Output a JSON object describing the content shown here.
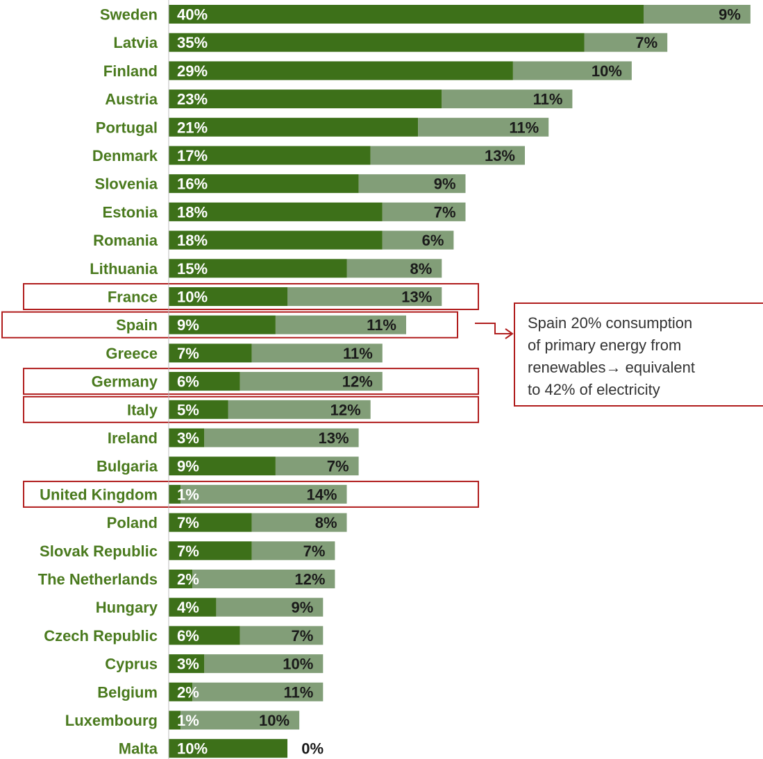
{
  "chart_data": {
    "type": "bar",
    "stacked": true,
    "orientation": "horizontal",
    "categories": [
      "Sweden",
      "Latvia",
      "Finland",
      "Austria",
      "Portugal",
      "Denmark",
      "Slovenia",
      "Estonia",
      "Romania",
      "Lithuania",
      "France",
      "Spain",
      "Greece",
      "Germany",
      "Italy",
      "Ireland",
      "Bulgaria",
      "United Kingdom",
      "Poland",
      "Slovak Republic",
      "The Netherlands",
      "Hungary",
      "Czech Republic",
      "Cyprus",
      "Belgium",
      "Luxembourg",
      "Malta"
    ],
    "series": [
      {
        "values": [
          40,
          35,
          29,
          23,
          21,
          17,
          16,
          18,
          18,
          15,
          10,
          9,
          7,
          6,
          5,
          3,
          9,
          1,
          7,
          7,
          2,
          4,
          6,
          3,
          2,
          1,
          10
        ]
      },
      {
        "values": [
          9,
          7,
          10,
          11,
          11,
          13,
          9,
          7,
          6,
          8,
          13,
          11,
          11,
          12,
          12,
          13,
          7,
          14,
          8,
          7,
          12,
          9,
          7,
          10,
          11,
          10,
          0
        ]
      }
    ],
    "value_labels": {
      "dark": [
        "40%",
        "35%",
        "29%",
        "23%",
        "21%",
        "17%",
        "16%",
        "18%",
        "18%",
        "15%",
        "10%",
        "9%",
        "7%",
        "6%",
        "5%",
        "3%",
        "9%",
        "1%",
        "7%",
        "7%",
        "2%",
        "4%",
        "6%",
        "3%",
        "2%",
        "1%",
        "10%"
      ],
      "light": [
        "9%",
        "7%",
        "10%",
        "11%",
        "11%",
        "13%",
        "9%",
        "7%",
        "6%",
        "8%",
        "13%",
        "11%",
        "11%",
        "12%",
        "12%",
        "13%",
        "7%",
        "14%",
        "8%",
        "7%",
        "12%",
        "9%",
        "7%",
        "10%",
        "11%",
        "10%",
        "0%"
      ]
    },
    "highlighted": [
      "France",
      "Spain",
      "Germany",
      "Italy",
      "United Kingdom"
    ],
    "grid": false,
    "colors": {
      "series1": "#3d7019",
      "series2": "#829e78",
      "label": "#4a7a1e",
      "highlight": "#b01c1c"
    }
  },
  "annotation": {
    "lines": [
      "Spain 20% consumption",
      "of primary energy from",
      "renewables→ equivalent",
      "to 42% of electricity"
    ]
  }
}
